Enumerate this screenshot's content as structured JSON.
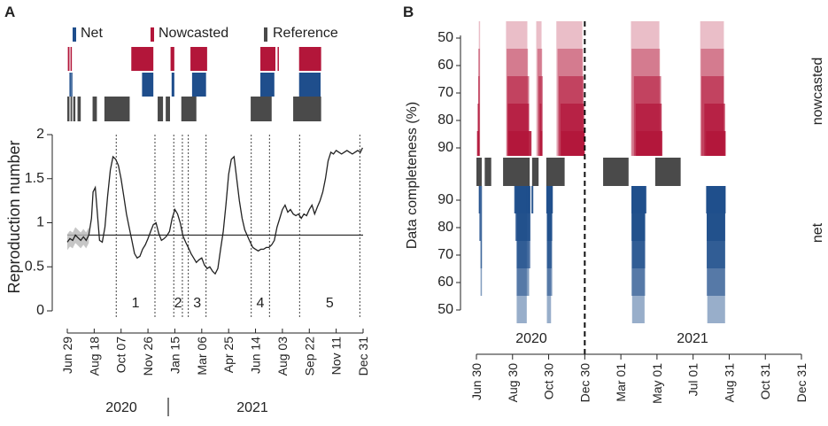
{
  "colors": {
    "net": "#1f4e8c",
    "nowcasted": "#b3163a",
    "reference": "#4a4a4a",
    "smooth_band": "#b8b8b8"
  },
  "chart_data": [
    {
      "panel": "A",
      "type": "line",
      "ylabel": "Reproduction number",
      "ylim": [
        0,
        2
      ],
      "yticks": [
        "0",
        "0.5",
        "1",
        "1.5",
        "2"
      ],
      "xticks": [
        "Jun 29",
        "Aug 18",
        "Oct 07",
        "Nov 26",
        "Jan 15",
        "Mar 06",
        "Apr 25",
        "Jun 14",
        "Aug 03",
        "Sep 22",
        "Nov 11",
        "Dec 31"
      ],
      "year_labels": [
        "2020",
        "2021"
      ],
      "legend": [
        {
          "name": "Net",
          "color_key": "net"
        },
        {
          "name": "Nowcasted",
          "color_key": "nowcasted"
        },
        {
          "name": "Reference",
          "color_key": "reference"
        }
      ],
      "threshold": 0.86,
      "x_days_total": 550,
      "series": {
        "name": "Reproduction number",
        "x": [
          0,
          5,
          10,
          15,
          20,
          25,
          30,
          35,
          40,
          45,
          48,
          52,
          56,
          60,
          65,
          70,
          75,
          80,
          85,
          90,
          95,
          100,
          105,
          110,
          115,
          120,
          125,
          130,
          135,
          140,
          145,
          150,
          155,
          160,
          165,
          170,
          175,
          180,
          185,
          190,
          195,
          200,
          205,
          210,
          215,
          220,
          225,
          230,
          235,
          240,
          245,
          250,
          255,
          260,
          265,
          270,
          275,
          280,
          285,
          290,
          295,
          300,
          305,
          310,
          315,
          320,
          325,
          330,
          335,
          340,
          345,
          350,
          355,
          360,
          365,
          370,
          375,
          380,
          385,
          390,
          395,
          400,
          405,
          410,
          415,
          420,
          425,
          430,
          435,
          440,
          445,
          450,
          455,
          460,
          465,
          470,
          475,
          480,
          485,
          490,
          495,
          500,
          505,
          510,
          515,
          520,
          525,
          530,
          535,
          540,
          545,
          549
        ],
        "y": [
          0.78,
          0.82,
          0.8,
          0.86,
          0.83,
          0.8,
          0.84,
          0.8,
          0.86,
          1.05,
          1.35,
          1.4,
          1.1,
          0.8,
          0.78,
          0.95,
          1.3,
          1.6,
          1.75,
          1.72,
          1.65,
          1.5,
          1.3,
          1.1,
          0.95,
          0.8,
          0.65,
          0.6,
          0.62,
          0.7,
          0.75,
          0.82,
          0.9,
          0.98,
          1.0,
          0.88,
          0.8,
          0.82,
          0.85,
          0.9,
          1.05,
          1.15,
          1.1,
          1.0,
          0.85,
          0.78,
          0.72,
          0.65,
          0.6,
          0.55,
          0.58,
          0.6,
          0.52,
          0.48,
          0.5,
          0.45,
          0.42,
          0.48,
          0.7,
          0.9,
          1.2,
          1.55,
          1.72,
          1.75,
          1.5,
          1.25,
          1.05,
          0.92,
          0.85,
          0.78,
          0.72,
          0.7,
          0.68,
          0.7,
          0.7,
          0.72,
          0.72,
          0.75,
          0.8,
          0.95,
          1.05,
          1.15,
          1.2,
          1.12,
          1.15,
          1.1,
          1.08,
          1.1,
          1.05,
          1.1,
          1.08,
          1.15,
          1.2,
          1.1,
          1.18,
          1.25,
          1.35,
          1.5,
          1.7,
          1.8,
          1.78,
          1.82,
          1.8,
          1.78,
          1.8,
          1.82,
          1.8,
          1.78,
          1.8,
          1.82,
          1.8,
          1.85
        ]
      },
      "periods": [
        {
          "label": "1",
          "start": 91,
          "end": 163
        },
        {
          "label": "2",
          "start": 198,
          "end": 214
        },
        {
          "label": "3",
          "start": 225,
          "end": 258
        },
        {
          "label": "4",
          "start": 342,
          "end": 376
        },
        {
          "label": "5",
          "start": 432,
          "end": 544
        }
      ],
      "segments": {
        "nowcasted": [
          [
            1,
            4
          ],
          [
            6,
            8
          ],
          [
            119,
            160
          ],
          [
            192,
            199
          ],
          [
            229,
            260
          ],
          [
            359,
            387
          ],
          [
            391,
            393
          ],
          [
            431,
            472
          ]
        ],
        "net": [
          [
            4,
            5
          ],
          [
            7,
            8
          ],
          [
            139,
            160
          ],
          [
            194,
            199
          ],
          [
            232,
            258
          ],
          [
            359,
            385
          ],
          [
            431,
            471
          ]
        ],
        "reference": [
          [
            0,
            4
          ],
          [
            6,
            9
          ],
          [
            11,
            15
          ],
          [
            19,
            25
          ],
          [
            47,
            55
          ],
          [
            69,
            116
          ],
          [
            168,
            178
          ],
          [
            183,
            191
          ],
          [
            212,
            240
          ],
          [
            341,
            380
          ],
          [
            420,
            472
          ]
        ]
      }
    },
    {
      "panel": "B",
      "type": "heatmap",
      "ylabel": "Data completeness (%)",
      "y_upper_ticks": [
        "50",
        "60",
        "70",
        "80",
        "90"
      ],
      "y_lower_ticks": [
        "90",
        "80",
        "70",
        "60",
        "50"
      ],
      "row_labels": {
        "upper": "nowcasted",
        "lower": "net"
      },
      "xticks": [
        "Jun 30",
        "Aug 30",
        "Oct 30",
        "Dec 30",
        "Mar 01",
        "May 01",
        "Jul 01",
        "Aug 31",
        "Oct 31",
        "Dec 31"
      ],
      "year_labels": [
        "2020",
        "2021"
      ],
      "dashed_line_day": 183,
      "x_days_total": 549,
      "reference_segments": [
        [
          0,
          9
        ],
        [
          14,
          25
        ],
        [
          45,
          90
        ],
        [
          94,
          105
        ],
        [
          118,
          149
        ],
        [
          214,
          257
        ],
        [
          302,
          345
        ]
      ],
      "nowcasted_rows": [
        {
          "completeness": 90,
          "opacity": 0.9,
          "segments": [
            [
              1,
              4
            ],
            [
              54,
              93
            ],
            [
              108,
              111
            ],
            [
              143,
              183
            ],
            [
              270,
              314
            ],
            [
              388,
              421
            ]
          ]
        },
        {
          "completeness": 80,
          "opacity": 0.72,
          "segments": [
            [
              2,
              5
            ],
            [
              53,
              89
            ],
            [
              107,
              110
            ],
            [
              142,
              182
            ],
            [
              269,
              313
            ],
            [
              385,
              420
            ]
          ]
        },
        {
          "completeness": 70,
          "opacity": 0.55,
          "segments": [
            [
              3,
              5
            ],
            [
              52,
              89
            ],
            [
              105,
              112
            ],
            [
              139,
              181
            ],
            [
              266,
              312
            ],
            [
              380,
              418
            ]
          ]
        },
        {
          "completeness": 60,
          "opacity": 0.4,
          "segments": [
            [
              3,
              6
            ],
            [
              51,
              87
            ],
            [
              103,
              111
            ],
            [
              137,
              180
            ],
            [
              262,
              310
            ],
            [
              379,
              418
            ]
          ]
        },
        {
          "completeness": 50,
          "opacity": 0.28,
          "segments": [
            [
              4,
              6
            ],
            [
              50,
              86
            ],
            [
              101,
              110
            ],
            [
              135,
              179
            ],
            [
              261,
              309
            ],
            [
              378,
              418
            ]
          ]
        }
      ],
      "net_rows": [
        {
          "completeness": 90,
          "opacity": 0.9,
          "segments": [
            [
              4,
              6
            ],
            [
              64,
              90
            ],
            [
              93,
              96
            ],
            [
              118,
              129
            ],
            [
              262,
              287
            ],
            [
              388,
              421
            ]
          ]
        },
        {
          "completeness": 80,
          "opacity": 0.72,
          "segments": [
            [
              5,
              7
            ],
            [
              66,
              91
            ],
            [
              119,
              128
            ],
            [
              262,
              285
            ],
            [
              389,
              420
            ]
          ]
        },
        {
          "completeness": 70,
          "opacity": 0.55,
          "segments": [
            [
              7,
              8
            ],
            [
              68,
              91
            ],
            [
              119,
              127
            ],
            [
              263,
              285
            ],
            [
              389,
              420
            ]
          ]
        },
        {
          "completeness": 60,
          "opacity": 0.4,
          "segments": [
            [
              7,
              9
            ],
            [
              68,
              89
            ],
            [
              119,
              128
            ],
            [
              262,
              285
            ],
            [
              389,
              420
            ]
          ]
        },
        {
          "completeness": 50,
          "opacity": 0.28,
          "segments": [
            [
              68,
              85
            ],
            [
              119,
              126
            ],
            [
              263,
              284
            ],
            [
              390,
              420
            ]
          ]
        }
      ]
    }
  ]
}
